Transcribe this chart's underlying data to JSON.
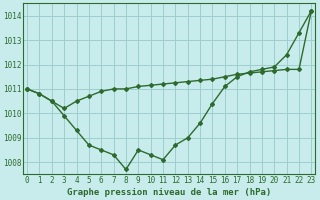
{
  "xlabel": "Graphe pression niveau de la mer (hPa)",
  "background_color": "#c8ecec",
  "line_color": "#2d6a2d",
  "grid_color": "#9ecece",
  "hours": [
    0,
    1,
    2,
    3,
    4,
    5,
    6,
    7,
    8,
    9,
    10,
    11,
    12,
    13,
    14,
    15,
    16,
    17,
    18,
    19,
    20,
    21,
    22,
    23
  ],
  "series1": [
    1011.0,
    1010.8,
    1010.5,
    1009.9,
    1009.3,
    1008.7,
    1008.5,
    1008.3,
    1007.7,
    1008.5,
    1008.3,
    1008.1,
    1008.7,
    1009.0,
    1009.6,
    1010.4,
    1011.1,
    1011.5,
    1011.7,
    1011.8,
    1011.9,
    1012.4,
    1013.3,
    1014.2
  ],
  "series2": [
    1011.0,
    1010.8,
    1010.5,
    1010.2,
    1010.5,
    1010.7,
    1010.9,
    1011.0,
    1011.0,
    1011.1,
    1011.15,
    1011.2,
    1011.25,
    1011.3,
    1011.35,
    1011.4,
    1011.5,
    1011.6,
    1011.65,
    1011.7,
    1011.75,
    1011.8,
    1011.8,
    1014.2
  ],
  "ylim": [
    1007.5,
    1014.5
  ],
  "yticks": [
    1008,
    1009,
    1010,
    1011,
    1012,
    1013,
    1014
  ],
  "xlim": [
    -0.3,
    23.3
  ],
  "marker": "D",
  "markersize": 2.0,
  "linewidth": 1.0,
  "xlabel_fontsize": 6.5,
  "tick_fontsize": 5.5
}
